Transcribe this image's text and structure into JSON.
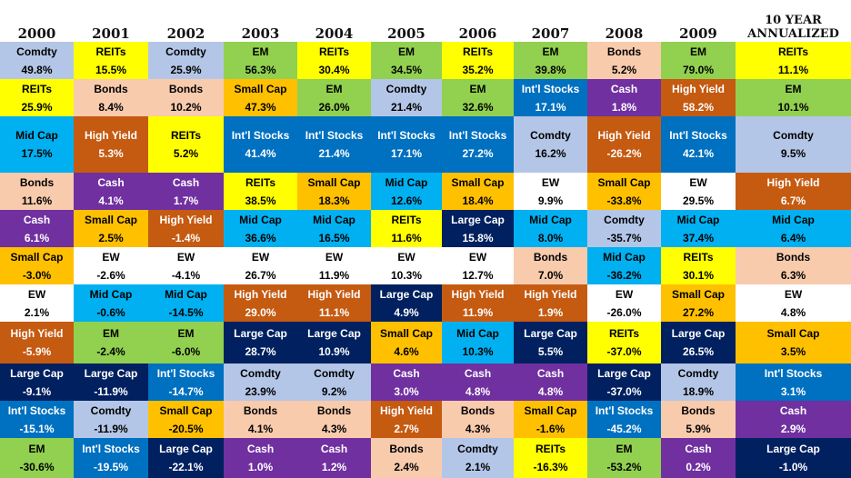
{
  "chart_data": {
    "type": "table",
    "columns": [
      "2000",
      "2001",
      "2002",
      "2003",
      "2004",
      "2005",
      "2006",
      "2007",
      "2008",
      "2009",
      "10 YEAR ANNUALIZED"
    ],
    "colors": {
      "Comdty": "#b4c6e7",
      "REITs": "#ffff00",
      "EM": "#92d050",
      "Bonds": "#f8cbad",
      "Int'l Stocks": "#0070c0",
      "Mid Cap": "#00b0f0",
      "High Yield": "#c55a11",
      "Cash": "#7030a0",
      "Small Cap": "#ffc000",
      "EW": "#ffffff",
      "Large Cap": "#002060"
    },
    "text_colors": {
      "Int'l Stocks": "#ffffff",
      "High Yield": "#ffffff",
      "Cash": "#ffffff",
      "Large Cap": "#ffffff"
    },
    "rows": [
      [
        [
          "Comdty",
          "49.8%"
        ],
        [
          "REITs",
          "15.5%"
        ],
        [
          "Comdty",
          "25.9%"
        ],
        [
          "EM",
          "56.3%"
        ],
        [
          "REITs",
          "30.4%"
        ],
        [
          "EM",
          "34.5%"
        ],
        [
          "REITs",
          "35.2%"
        ],
        [
          "EM",
          "39.8%"
        ],
        [
          "Bonds",
          "5.2%"
        ],
        [
          "EM",
          "79.0%"
        ],
        [
          "REITs",
          "11.1%"
        ]
      ],
      [
        [
          "REITs",
          "25.9%"
        ],
        [
          "Bonds",
          "8.4%"
        ],
        [
          "Bonds",
          "10.2%"
        ],
        [
          "Small Cap",
          "47.3%"
        ],
        [
          "EM",
          "26.0%"
        ],
        [
          "Comdty",
          "21.4%"
        ],
        [
          "EM",
          "32.6%"
        ],
        [
          "Int'l Stocks",
          "17.1%"
        ],
        [
          "Cash",
          "1.8%"
        ],
        [
          "High Yield",
          "58.2%"
        ],
        [
          "EM",
          "10.1%"
        ]
      ],
      [
        [
          "Mid Cap",
          "17.5%"
        ],
        [
          "High Yield",
          "5.3%"
        ],
        [
          "REITs",
          "5.2%"
        ],
        [
          "Int'l Stocks",
          "41.4%"
        ],
        [
          "Int'l Stocks",
          "21.4%"
        ],
        [
          "Int'l Stocks",
          "17.1%"
        ],
        [
          "Int'l Stocks",
          "27.2%"
        ],
        [
          "Comdty",
          "16.2%"
        ],
        [
          "High Yield",
          "-26.2%"
        ],
        [
          "Int'l Stocks",
          "42.1%"
        ],
        [
          "Comdty",
          "9.5%"
        ]
      ],
      [
        [
          "Bonds",
          "11.6%"
        ],
        [
          "Cash",
          "4.1%"
        ],
        [
          "Cash",
          "1.7%"
        ],
        [
          "REITs",
          "38.5%"
        ],
        [
          "Small Cap",
          "18.3%"
        ],
        [
          "Mid Cap",
          "12.6%"
        ],
        [
          "Small Cap",
          "18.4%"
        ],
        [
          "EW",
          "9.9%"
        ],
        [
          "Small Cap",
          "-33.8%"
        ],
        [
          "EW",
          "29.5%"
        ],
        [
          "High Yield",
          "6.7%"
        ]
      ],
      [
        [
          "Cash",
          "6.1%"
        ],
        [
          "Small Cap",
          "2.5%"
        ],
        [
          "High Yield",
          "-1.4%"
        ],
        [
          "Mid Cap",
          "36.6%"
        ],
        [
          "Mid Cap",
          "16.5%"
        ],
        [
          "REITs",
          "11.6%"
        ],
        [
          "Large Cap",
          "15.8%"
        ],
        [
          "Mid Cap",
          "8.0%"
        ],
        [
          "Comdty",
          "-35.7%"
        ],
        [
          "Mid Cap",
          "37.4%"
        ],
        [
          "Mid Cap",
          "6.4%"
        ]
      ],
      [
        [
          "Small Cap",
          "-3.0%"
        ],
        [
          "EW",
          "-2.6%"
        ],
        [
          "EW",
          "-4.1%"
        ],
        [
          "EW",
          "26.7%"
        ],
        [
          "EW",
          "11.9%"
        ],
        [
          "EW",
          "10.3%"
        ],
        [
          "EW",
          "12.7%"
        ],
        [
          "Bonds",
          "7.0%"
        ],
        [
          "Mid Cap",
          "-36.2%"
        ],
        [
          "REITs",
          "30.1%"
        ],
        [
          "Bonds",
          "6.3%"
        ]
      ],
      [
        [
          "EW",
          "2.1%"
        ],
        [
          "Mid Cap",
          "-0.6%"
        ],
        [
          "Mid Cap",
          "-14.5%"
        ],
        [
          "High Yield",
          "29.0%"
        ],
        [
          "High Yield",
          "11.1%"
        ],
        [
          "Large Cap",
          "4.9%"
        ],
        [
          "High Yield",
          "11.9%"
        ],
        [
          "High Yield",
          "1.9%"
        ],
        [
          "EW",
          "-26.0%"
        ],
        [
          "Small Cap",
          "27.2%"
        ],
        [
          "EW",
          "4.8%"
        ]
      ],
      [
        [
          "High Yield",
          "-5.9%"
        ],
        [
          "EM",
          "-2.4%"
        ],
        [
          "EM",
          "-6.0%"
        ],
        [
          "Large Cap",
          "28.7%"
        ],
        [
          "Large Cap",
          "10.9%"
        ],
        [
          "Small Cap",
          "4.6%"
        ],
        [
          "Mid Cap",
          "10.3%"
        ],
        [
          "Large Cap",
          "5.5%"
        ],
        [
          "REITs",
          "-37.0%"
        ],
        [
          "Large Cap",
          "26.5%"
        ],
        [
          "Small Cap",
          "3.5%"
        ]
      ],
      [
        [
          "Large Cap",
          "-9.1%"
        ],
        [
          "Large Cap",
          "-11.9%"
        ],
        [
          "Int'l Stocks",
          "-14.7%"
        ],
        [
          "Comdty",
          "23.9%"
        ],
        [
          "Comdty",
          "9.2%"
        ],
        [
          "Cash",
          "3.0%"
        ],
        [
          "Cash",
          "4.8%"
        ],
        [
          "Cash",
          "4.8%"
        ],
        [
          "Large Cap",
          "-37.0%"
        ],
        [
          "Comdty",
          "18.9%"
        ],
        [
          "Int'l Stocks",
          "3.1%"
        ]
      ],
      [
        [
          "Int'l Stocks",
          "-15.1%"
        ],
        [
          "Comdty",
          "-11.9%"
        ],
        [
          "Small Cap",
          "-20.5%"
        ],
        [
          "Bonds",
          "4.1%"
        ],
        [
          "Bonds",
          "4.3%"
        ],
        [
          "High Yield",
          "2.7%"
        ],
        [
          "Bonds",
          "4.3%"
        ],
        [
          "Small Cap",
          "-1.6%"
        ],
        [
          "Int'l Stocks",
          "-45.2%"
        ],
        [
          "Bonds",
          "5.9%"
        ],
        [
          "Cash",
          "2.9%"
        ]
      ],
      [
        [
          "EM",
          "-30.6%"
        ],
        [
          "Int'l Stocks",
          "-19.5%"
        ],
        [
          "Large Cap",
          "-22.1%"
        ],
        [
          "Cash",
          "1.0%"
        ],
        [
          "Cash",
          "1.2%"
        ],
        [
          "Bonds",
          "2.4%"
        ],
        [
          "Comdty",
          "2.1%"
        ],
        [
          "REITs",
          "-16.3%"
        ],
        [
          "EM",
          "-53.2%"
        ],
        [
          "Cash",
          "0.2%"
        ],
        [
          "Large Cap",
          "-1.0%"
        ]
      ]
    ]
  }
}
